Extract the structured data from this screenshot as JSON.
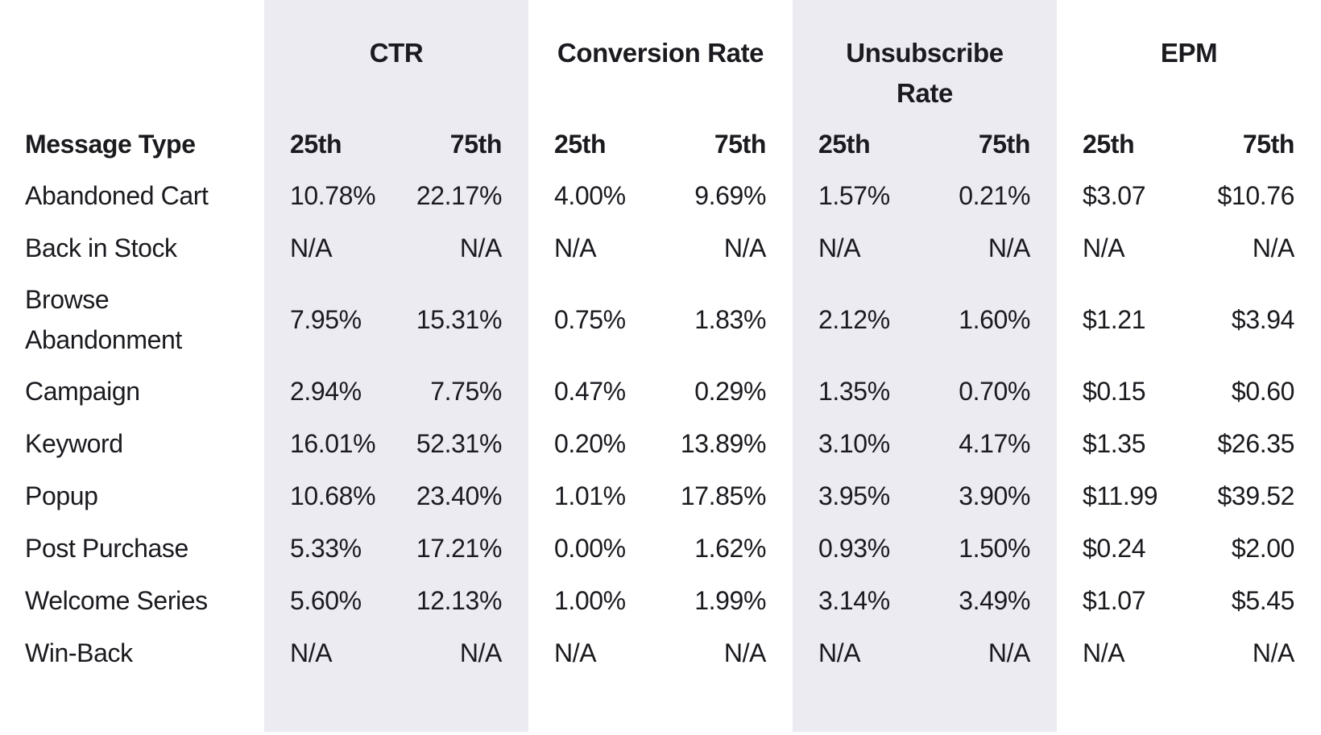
{
  "colors": {
    "background": "#FFFFFF",
    "band": "#ECEBF1",
    "text": "#1A1A1F"
  },
  "chart_data": {
    "type": "table",
    "row_header": "Message Type",
    "column_groups": [
      "CTR",
      "Conversion Rate",
      "Unsubscribe Rate",
      "EPM"
    ],
    "subcolumns": [
      "25th",
      "75th"
    ],
    "shaded_groups": [
      "CTR",
      "Unsubscribe Rate"
    ],
    "rows": [
      {
        "label": "Abandoned Cart",
        "values": [
          "10.78%",
          "22.17%",
          "4.00%",
          "9.69%",
          "1.57%",
          "0.21%",
          "$3.07",
          "$10.76"
        ]
      },
      {
        "label": "Back in Stock",
        "values": [
          "N/A",
          "N/A",
          "N/A",
          "N/A",
          "N/A",
          "N/A",
          "N/A",
          "N/A"
        ]
      },
      {
        "label": "Browse Abandonment",
        "values": [
          "7.95%",
          "15.31%",
          "0.75%",
          "1.83%",
          "2.12%",
          "1.60%",
          "$1.21",
          "$3.94"
        ]
      },
      {
        "label": "Campaign",
        "values": [
          "2.94%",
          "7.75%",
          "0.47%",
          "0.29%",
          "1.35%",
          "0.70%",
          "$0.15",
          "$0.60"
        ]
      },
      {
        "label": "Keyword",
        "values": [
          "16.01%",
          "52.31%",
          "0.20%",
          "13.89%",
          "3.10%",
          "4.17%",
          "$1.35",
          "$26.35"
        ]
      },
      {
        "label": "Popup",
        "values": [
          "10.68%",
          "23.40%",
          "1.01%",
          "17.85%",
          "3.95%",
          "3.90%",
          "$11.99",
          "$39.52"
        ]
      },
      {
        "label": "Post Purchase",
        "values": [
          "5.33%",
          "17.21%",
          "0.00%",
          "1.62%",
          "0.93%",
          "1.50%",
          "$0.24",
          "$2.00"
        ]
      },
      {
        "label": "Welcome Series",
        "values": [
          "5.60%",
          "12.13%",
          "1.00%",
          "1.99%",
          "3.14%",
          "3.49%",
          "$1.07",
          "$5.45"
        ]
      },
      {
        "label": "Win-Back",
        "values": [
          "N/A",
          "N/A",
          "N/A",
          "N/A",
          "N/A",
          "N/A",
          "N/A",
          "N/A"
        ]
      }
    ]
  }
}
